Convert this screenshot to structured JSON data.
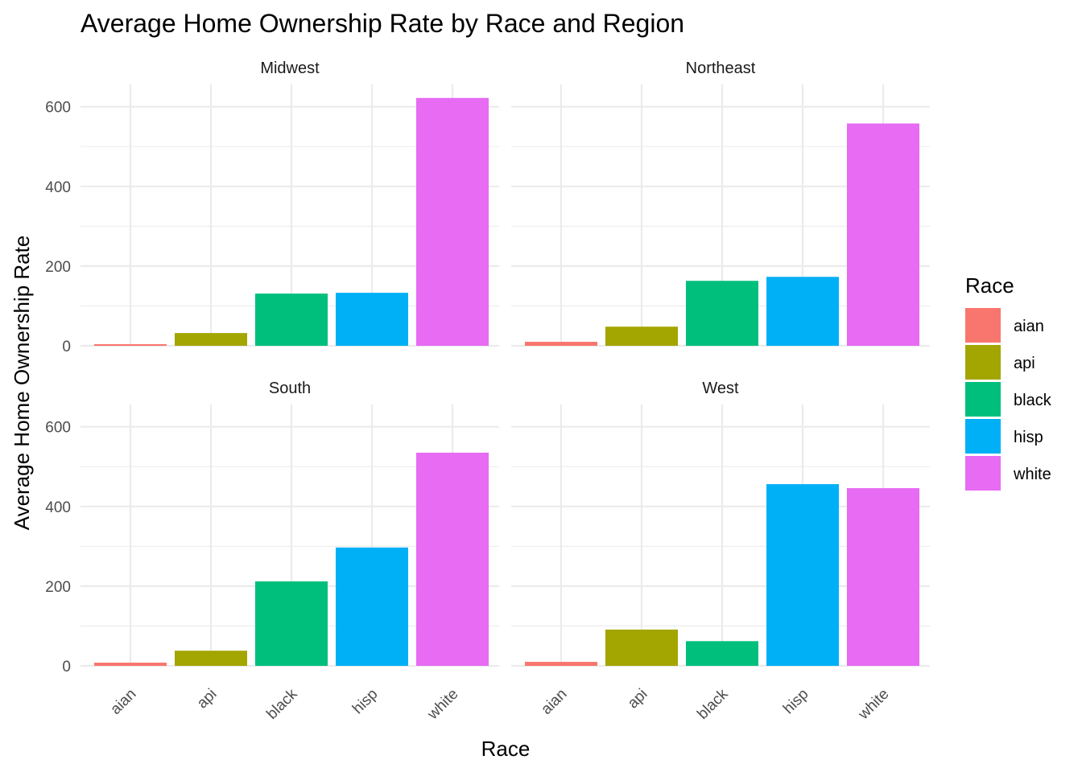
{
  "chart_data": {
    "type": "bar",
    "title": "Average Home Ownership Rate by Race and Region",
    "xlabel": "Race",
    "ylabel": "Average Home Ownership Rate",
    "categories": [
      "aian",
      "api",
      "black",
      "hisp",
      "white"
    ],
    "ylim": [
      0,
      650
    ],
    "yticks": [
      0,
      200,
      400,
      600
    ],
    "grid": true,
    "legend": {
      "title": "Race",
      "placement": "right",
      "entries": [
        "aian",
        "api",
        "black",
        "hisp",
        "white"
      ]
    },
    "colors": {
      "aian": "#F8766D",
      "api": "#A3A500",
      "black": "#00BF7D",
      "hisp": "#00B0F6",
      "white": "#E76BF3"
    },
    "facets": [
      {
        "name": "Midwest",
        "values": [
          4,
          32,
          131,
          133,
          622
        ]
      },
      {
        "name": "Northeast",
        "values": [
          10,
          48,
          163,
          173,
          558
        ]
      },
      {
        "name": "South",
        "values": [
          8,
          38,
          212,
          297,
          535
        ]
      },
      {
        "name": "West",
        "values": [
          10,
          91,
          62,
          456,
          446
        ]
      }
    ]
  }
}
